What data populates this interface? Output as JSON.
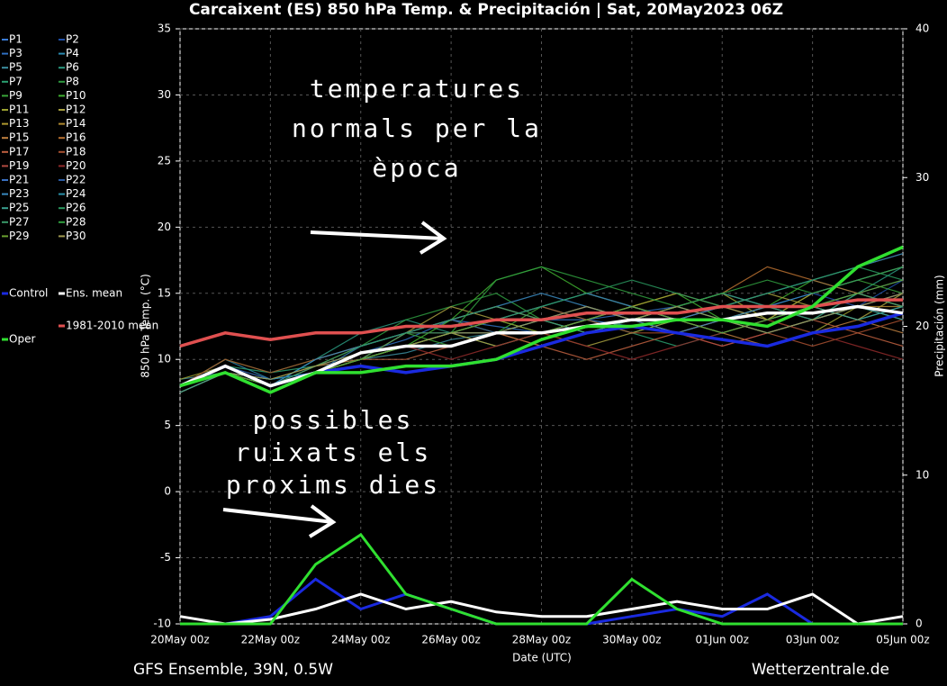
{
  "chart_data": {
    "type": "line",
    "title": "Carcaixent  (ES)  850 hPa Temp. & Precipitación | Sat, 20May2023 06Z",
    "y_label": "850 hPa Temp. (°C)",
    "y2_label": "Precipitación (mm)",
    "x_label": "Date (UTC)",
    "footer_left": "GFS Ensemble, 39N, 0.5W",
    "footer_right": "Wetterzentrale.de",
    "annotations": [
      {
        "lines": [
          "temperatures",
          "normals per la",
          "època"
        ]
      },
      {
        "lines": [
          "possibles",
          "ruixats els",
          "proxims dies"
        ]
      }
    ],
    "x": [
      "20May 00z",
      null,
      "22May 00z",
      null,
      "24May 00z",
      null,
      "26May 00z",
      null,
      "28May 00z",
      null,
      "30May 00z",
      null,
      "01Jun 00z",
      null,
      "03Jun 00z",
      null,
      "05Jun 00z"
    ],
    "ylim": [
      -10,
      35
    ],
    "yticks": [
      -10,
      -5,
      0,
      5,
      10,
      15,
      20,
      25,
      30,
      35
    ],
    "y2lim": [
      0,
      40
    ],
    "y2ticks": [
      0,
      10,
      20,
      30,
      40
    ],
    "grid": true,
    "series": [
      {
        "name": "P1",
        "color": "#3a7bd5",
        "values": [
          8,
          9,
          8.5,
          9,
          10,
          11,
          12,
          12,
          13,
          13,
          12.5,
          13,
          14,
          13,
          14,
          15,
          14
        ]
      },
      {
        "name": "P2",
        "color": "#1f4fa8",
        "values": [
          8,
          9.5,
          8,
          10,
          11,
          12,
          12,
          11,
          12,
          13,
          14,
          13,
          13,
          14,
          15,
          14,
          16
        ]
      },
      {
        "name": "P3",
        "color": "#2f6fc0",
        "values": [
          7.5,
          9,
          8,
          9.5,
          10.5,
          11.5,
          13,
          12.5,
          12,
          13,
          13.5,
          14,
          13,
          12,
          13,
          14,
          15
        ]
      },
      {
        "name": "P4",
        "color": "#2a8ab0",
        "values": [
          8,
          10,
          8.5,
          9,
          11,
          12,
          13,
          14,
          13,
          12,
          13,
          14,
          15,
          14,
          13,
          15,
          16
        ]
      },
      {
        "name": "P5",
        "color": "#3d8fa0",
        "values": [
          8.5,
          9,
          7.5,
          9,
          10,
          10.5,
          11.5,
          12,
          13,
          14,
          13,
          12,
          13,
          14,
          14,
          13,
          14
        ]
      },
      {
        "name": "P6",
        "color": "#2a9a80",
        "values": [
          8,
          9,
          8,
          10,
          12,
          13,
          12,
          11,
          12,
          13,
          12,
          13,
          14,
          15,
          16,
          15,
          17
        ]
      },
      {
        "name": "P7",
        "color": "#2aa070",
        "values": [
          8,
          9.5,
          9,
          9.5,
          10,
          11,
          12,
          13,
          14,
          13,
          12,
          11,
          12,
          13,
          14,
          15,
          14
        ]
      },
      {
        "name": "P8",
        "color": "#2e9a40",
        "values": [
          7.5,
          9,
          8,
          9,
          11,
          13,
          14,
          15,
          13,
          12,
          13,
          14,
          13,
          12,
          13,
          14,
          13
        ]
      },
      {
        "name": "P9",
        "color": "#3aa53a",
        "values": [
          8,
          10,
          9,
          10,
          11,
          12,
          11,
          12,
          14,
          15,
          14,
          13,
          12,
          13,
          15,
          16,
          15
        ]
      },
      {
        "name": "P10",
        "color": "#40b030",
        "values": [
          8,
          9,
          8,
          9,
          10,
          11,
          13,
          16,
          17,
          15,
          14,
          15,
          13,
          14,
          16,
          17,
          18
        ]
      },
      {
        "name": "P11",
        "color": "#9aa030",
        "values": [
          8.5,
          9.5,
          8,
          9,
          10,
          12,
          13,
          12,
          11,
          12,
          13,
          14,
          15,
          13,
          12,
          14,
          13
        ]
      },
      {
        "name": "P12",
        "color": "#a8a040",
        "values": [
          8,
          9,
          8.5,
          9.5,
          11,
          12,
          14,
          13,
          12,
          11,
          12,
          13,
          14,
          15,
          14,
          13,
          15
        ]
      },
      {
        "name": "P13",
        "color": "#b09a30",
        "values": [
          8,
          9,
          8,
          9,
          10,
          11,
          12,
          11,
          12,
          13,
          14,
          15,
          14,
          13,
          15,
          16,
          17
        ]
      },
      {
        "name": "P14",
        "color": "#b08a30",
        "values": [
          8,
          9.5,
          8,
          9,
          10,
          11,
          11,
          12,
          13,
          12,
          13,
          12,
          13,
          14,
          13,
          14,
          14
        ]
      },
      {
        "name": "P15",
        "color": "#c08040",
        "values": [
          7.5,
          9,
          8,
          9,
          10.5,
          11,
          12,
          13,
          12,
          13,
          14,
          13,
          12,
          11,
          12,
          13,
          12
        ]
      },
      {
        "name": "P16",
        "color": "#b87030",
        "values": [
          8,
          9,
          8,
          9.5,
          10,
          12,
          13,
          14,
          13,
          12,
          13,
          14,
          15,
          17,
          16,
          15,
          14
        ]
      },
      {
        "name": "P17",
        "color": "#c06040",
        "values": [
          8,
          9,
          8,
          9,
          10,
          10,
          11,
          12,
          11,
          10,
          11,
          12,
          11,
          12,
          13,
          12,
          11
        ]
      },
      {
        "name": "P18",
        "color": "#a85030",
        "values": [
          8,
          10,
          9,
          10,
          11,
          12,
          12,
          13,
          14,
          13,
          12,
          12,
          13,
          12,
          11,
          12,
          13
        ]
      },
      {
        "name": "P19",
        "color": "#b04a40",
        "values": [
          8,
          9,
          8,
          9,
          10,
          11,
          12,
          12,
          13,
          14,
          13,
          12,
          11,
          12,
          13,
          14,
          15
        ]
      },
      {
        "name": "P20",
        "color": "#902a2a",
        "values": [
          8,
          9,
          8,
          9,
          10,
          11,
          10,
          11,
          12,
          11,
          10,
          11,
          12,
          13,
          12,
          11,
          10
        ]
      },
      {
        "name": "P21",
        "color": "#3a70c0",
        "values": [
          8,
          9.5,
          8.5,
          9,
          10,
          11,
          12,
          13,
          14,
          15,
          14,
          13,
          14,
          15,
          16,
          17,
          18
        ]
      },
      {
        "name": "P22",
        "color": "#2a5aa0",
        "values": [
          8,
          9,
          8,
          9,
          11,
          12,
          13,
          12,
          13,
          14,
          13,
          14,
          15,
          14,
          13,
          14,
          15
        ]
      },
      {
        "name": "P23",
        "color": "#3a8ac0",
        "values": [
          8,
          9,
          8,
          10,
          11,
          12,
          13,
          14,
          15,
          14,
          13,
          12,
          13,
          14,
          15,
          16,
          17
        ]
      },
      {
        "name": "P24",
        "color": "#2a90a8",
        "values": [
          8,
          9,
          8.5,
          9,
          10,
          11,
          12,
          12,
          13,
          12,
          13,
          14,
          13,
          12,
          13,
          14,
          13
        ]
      },
      {
        "name": "P25",
        "color": "#3aa090",
        "values": [
          7.5,
          9,
          8,
          9,
          10,
          11,
          11,
          12,
          12,
          13,
          14,
          13,
          12,
          13,
          14,
          13,
          14
        ]
      },
      {
        "name": "P26",
        "color": "#2a9a60",
        "values": [
          8,
          9,
          8,
          9.5,
          11,
          12,
          12,
          13,
          14,
          15,
          16,
          15,
          14,
          15,
          16,
          17,
          16
        ]
      },
      {
        "name": "P27",
        "color": "#3a9a6a",
        "values": [
          8,
          9,
          8,
          9,
          10,
          12,
          13,
          14,
          13,
          12,
          13,
          14,
          15,
          14,
          13,
          15,
          14
        ]
      },
      {
        "name": "P28",
        "color": "#30a040",
        "values": [
          8,
          9.5,
          8,
          9,
          10,
          11,
          12,
          16,
          17,
          16,
          15,
          14,
          15,
          16,
          15,
          16,
          17
        ]
      },
      {
        "name": "P29",
        "color": "#6aa030",
        "values": [
          8,
          9,
          8,
          9,
          10,
          11,
          12,
          13,
          12,
          13,
          14,
          13,
          12,
          13,
          14,
          15,
          16
        ]
      },
      {
        "name": "P30",
        "color": "#a09a50",
        "values": [
          8,
          9,
          8.5,
          9.5,
          10.5,
          11,
          12,
          12,
          13,
          14,
          13,
          14,
          13,
          12,
          13,
          14,
          15
        ]
      },
      {
        "name": "Control",
        "color": "#1a2ae0",
        "values": [
          8,
          9.5,
          8,
          9,
          9.5,
          9,
          9.5,
          10,
          11,
          12,
          12.5,
          12,
          11.5,
          11,
          12,
          12.5,
          13.5
        ],
        "precip_values": [
          0,
          0,
          0.5,
          3,
          1,
          2,
          1,
          0,
          0,
          0,
          0.5,
          1,
          0.5,
          2,
          0,
          0,
          0
        ]
      },
      {
        "name": "Ens. mean",
        "color": "#ffffff",
        "values": [
          8,
          9.5,
          8,
          9,
          10.5,
          11,
          11,
          12,
          12,
          12.5,
          13,
          13,
          13,
          13.5,
          13.5,
          14,
          13.5
        ],
        "precip_values": [
          0.5,
          0,
          0.3,
          1,
          2,
          1,
          1.5,
          0.8,
          0.5,
          0.5,
          1,
          1.5,
          1,
          1,
          2,
          0,
          0.5
        ]
      },
      {
        "name": "1981-2010 mean",
        "color": "#e05050",
        "values": [
          11,
          12,
          11.5,
          12,
          12,
          12.5,
          12.5,
          13,
          13,
          13.5,
          13.5,
          13.5,
          14,
          14,
          14,
          14.5,
          14.5
        ]
      },
      {
        "name": "Oper",
        "color": "#30e030",
        "values": [
          8,
          9,
          7.5,
          9,
          9,
          9.5,
          9.5,
          10,
          11.5,
          12.5,
          12.5,
          13,
          13,
          12.5,
          14,
          17,
          18.5
        ],
        "precip_values": [
          0,
          0,
          0,
          4,
          6,
          2,
          1,
          0,
          0,
          0,
          3,
          1,
          0,
          0,
          0,
          0,
          0
        ]
      }
    ]
  }
}
